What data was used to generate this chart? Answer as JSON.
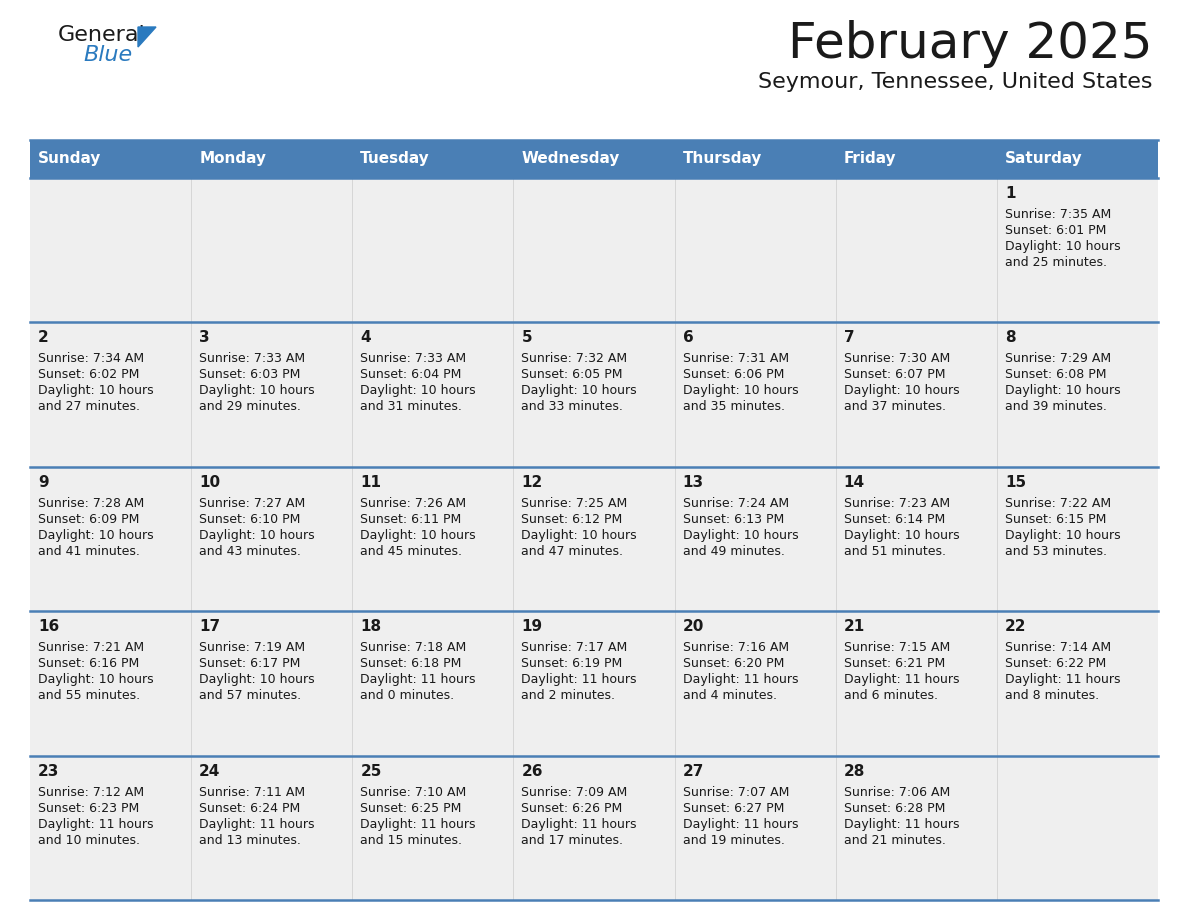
{
  "title": "February 2025",
  "subtitle": "Seymour, Tennessee, United States",
  "header_bg": "#4a7fb5",
  "header_text_color": "#ffffff",
  "cell_bg_light": "#efefef",
  "cell_bg_white": "#ffffff",
  "separator_color": "#4a7fb5",
  "day_headers": [
    "Sunday",
    "Monday",
    "Tuesday",
    "Wednesday",
    "Thursday",
    "Friday",
    "Saturday"
  ],
  "days": [
    {
      "day": 1,
      "col": 6,
      "row": 0,
      "sunrise": "7:35 AM",
      "sunset": "6:01 PM",
      "daylight": "10 hours and 25 minutes."
    },
    {
      "day": 2,
      "col": 0,
      "row": 1,
      "sunrise": "7:34 AM",
      "sunset": "6:02 PM",
      "daylight": "10 hours and 27 minutes."
    },
    {
      "day": 3,
      "col": 1,
      "row": 1,
      "sunrise": "7:33 AM",
      "sunset": "6:03 PM",
      "daylight": "10 hours and 29 minutes."
    },
    {
      "day": 4,
      "col": 2,
      "row": 1,
      "sunrise": "7:33 AM",
      "sunset": "6:04 PM",
      "daylight": "10 hours and 31 minutes."
    },
    {
      "day": 5,
      "col": 3,
      "row": 1,
      "sunrise": "7:32 AM",
      "sunset": "6:05 PM",
      "daylight": "10 hours and 33 minutes."
    },
    {
      "day": 6,
      "col": 4,
      "row": 1,
      "sunrise": "7:31 AM",
      "sunset": "6:06 PM",
      "daylight": "10 hours and 35 minutes."
    },
    {
      "day": 7,
      "col": 5,
      "row": 1,
      "sunrise": "7:30 AM",
      "sunset": "6:07 PM",
      "daylight": "10 hours and 37 minutes."
    },
    {
      "day": 8,
      "col": 6,
      "row": 1,
      "sunrise": "7:29 AM",
      "sunset": "6:08 PM",
      "daylight": "10 hours and 39 minutes."
    },
    {
      "day": 9,
      "col": 0,
      "row": 2,
      "sunrise": "7:28 AM",
      "sunset": "6:09 PM",
      "daylight": "10 hours and 41 minutes."
    },
    {
      "day": 10,
      "col": 1,
      "row": 2,
      "sunrise": "7:27 AM",
      "sunset": "6:10 PM",
      "daylight": "10 hours and 43 minutes."
    },
    {
      "day": 11,
      "col": 2,
      "row": 2,
      "sunrise": "7:26 AM",
      "sunset": "6:11 PM",
      "daylight": "10 hours and 45 minutes."
    },
    {
      "day": 12,
      "col": 3,
      "row": 2,
      "sunrise": "7:25 AM",
      "sunset": "6:12 PM",
      "daylight": "10 hours and 47 minutes."
    },
    {
      "day": 13,
      "col": 4,
      "row": 2,
      "sunrise": "7:24 AM",
      "sunset": "6:13 PM",
      "daylight": "10 hours and 49 minutes."
    },
    {
      "day": 14,
      "col": 5,
      "row": 2,
      "sunrise": "7:23 AM",
      "sunset": "6:14 PM",
      "daylight": "10 hours and 51 minutes."
    },
    {
      "day": 15,
      "col": 6,
      "row": 2,
      "sunrise": "7:22 AM",
      "sunset": "6:15 PM",
      "daylight": "10 hours and 53 minutes."
    },
    {
      "day": 16,
      "col": 0,
      "row": 3,
      "sunrise": "7:21 AM",
      "sunset": "6:16 PM",
      "daylight": "10 hours and 55 minutes."
    },
    {
      "day": 17,
      "col": 1,
      "row": 3,
      "sunrise": "7:19 AM",
      "sunset": "6:17 PM",
      "daylight": "10 hours and 57 minutes."
    },
    {
      "day": 18,
      "col": 2,
      "row": 3,
      "sunrise": "7:18 AM",
      "sunset": "6:18 PM",
      "daylight": "11 hours and 0 minutes."
    },
    {
      "day": 19,
      "col": 3,
      "row": 3,
      "sunrise": "7:17 AM",
      "sunset": "6:19 PM",
      "daylight": "11 hours and 2 minutes."
    },
    {
      "day": 20,
      "col": 4,
      "row": 3,
      "sunrise": "7:16 AM",
      "sunset": "6:20 PM",
      "daylight": "11 hours and 4 minutes."
    },
    {
      "day": 21,
      "col": 5,
      "row": 3,
      "sunrise": "7:15 AM",
      "sunset": "6:21 PM",
      "daylight": "11 hours and 6 minutes."
    },
    {
      "day": 22,
      "col": 6,
      "row": 3,
      "sunrise": "7:14 AM",
      "sunset": "6:22 PM",
      "daylight": "11 hours and 8 minutes."
    },
    {
      "day": 23,
      "col": 0,
      "row": 4,
      "sunrise": "7:12 AM",
      "sunset": "6:23 PM",
      "daylight": "11 hours and 10 minutes."
    },
    {
      "day": 24,
      "col": 1,
      "row": 4,
      "sunrise": "7:11 AM",
      "sunset": "6:24 PM",
      "daylight": "11 hours and 13 minutes."
    },
    {
      "day": 25,
      "col": 2,
      "row": 4,
      "sunrise": "7:10 AM",
      "sunset": "6:25 PM",
      "daylight": "11 hours and 15 minutes."
    },
    {
      "day": 26,
      "col": 3,
      "row": 4,
      "sunrise": "7:09 AM",
      "sunset": "6:26 PM",
      "daylight": "11 hours and 17 minutes."
    },
    {
      "day": 27,
      "col": 4,
      "row": 4,
      "sunrise": "7:07 AM",
      "sunset": "6:27 PM",
      "daylight": "11 hours and 19 minutes."
    },
    {
      "day": 28,
      "col": 5,
      "row": 4,
      "sunrise": "7:06 AM",
      "sunset": "6:28 PM",
      "daylight": "11 hours and 21 minutes."
    }
  ],
  "logo_text1": "General",
  "logo_text2": "Blue",
  "logo_color1": "#1a1a1a",
  "logo_color2": "#2a7abf",
  "logo_triangle_color": "#2a7abf",
  "title_fontsize": 36,
  "subtitle_fontsize": 16,
  "header_fontsize": 11,
  "day_num_fontsize": 11,
  "cell_fontsize": 9
}
